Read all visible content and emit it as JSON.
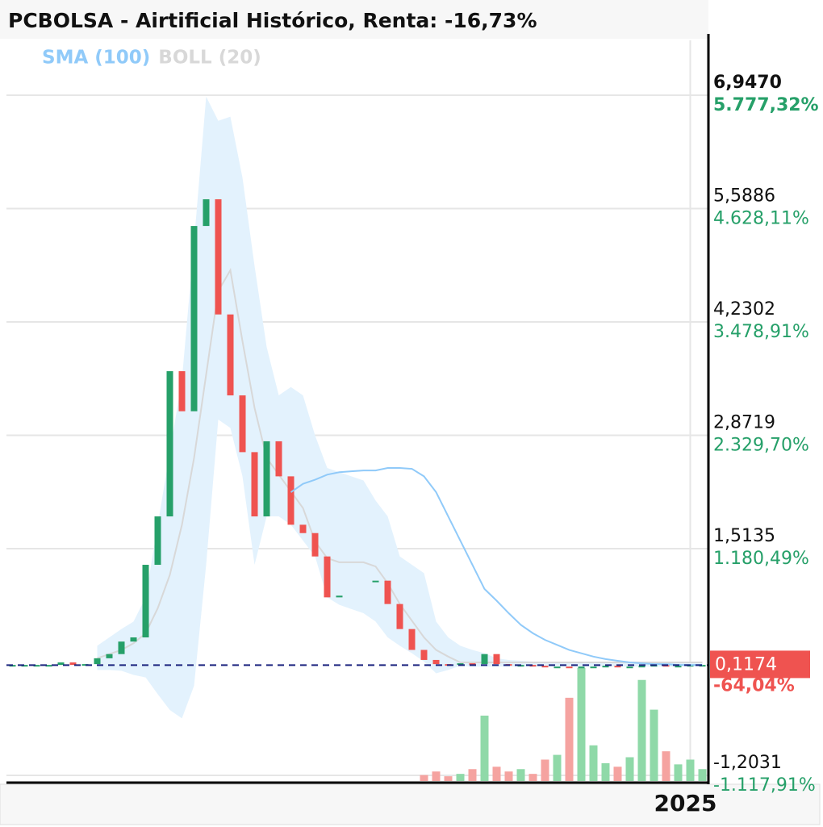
{
  "chart_data": {
    "type": "candlestick",
    "title": "PCBOLSA - Airtificial Histórico, Renta: -16,73%",
    "categories": [
      null,
      null,
      null,
      null,
      null,
      null,
      null,
      null,
      null,
      null,
      null,
      null,
      null,
      null,
      null,
      null,
      null,
      null,
      null,
      null,
      null,
      null,
      null,
      null,
      null,
      null,
      null,
      null,
      null,
      null,
      null,
      null,
      null,
      null,
      null,
      null,
      null,
      null,
      null,
      null,
      null,
      null,
      null,
      null,
      null,
      null,
      null,
      null,
      null,
      null,
      null,
      null,
      null,
      null,
      null,
      null,
      "2025",
      null
    ],
    "close": [
      0.12,
      0.12,
      0.12,
      0.12,
      0.15,
      0.12,
      0.13,
      0.2,
      0.25,
      0.4,
      0.45,
      1.32,
      1.9,
      3.64,
      3.16,
      5.38,
      5.7,
      4.32,
      3.35,
      2.67,
      1.9,
      2.8,
      2.38,
      1.8,
      1.7,
      1.42,
      0.93,
      0.95,
      null,
      null,
      1.13,
      0.85,
      0.55,
      0.3,
      0.18,
      0.13,
      0.12,
      0.14,
      0.13,
      0.25,
      0.13,
      0.12,
      0.12,
      0.11,
      0.1,
      0.1,
      0.09,
      0.1,
      0.1,
      0.11,
      0.1,
      0.1,
      0.11,
      0.12,
      0.1,
      0.11,
      0.12,
      0.12
    ],
    "up_color": "#26a069",
    "down_color": "#ef5350",
    "volume": [
      0,
      0,
      0,
      0,
      0,
      0,
      0,
      0,
      0,
      0,
      0,
      0,
      0,
      0,
      0,
      0,
      0,
      0,
      0,
      0,
      0,
      0,
      0,
      0,
      0,
      0,
      0,
      0,
      0,
      0,
      0,
      0,
      0,
      0,
      5,
      8,
      4,
      6,
      10,
      55,
      12,
      8,
      10,
      6,
      18,
      22,
      70,
      95,
      30,
      15,
      12,
      20,
      85,
      60,
      25,
      14,
      18,
      10
    ],
    "series": [
      {
        "name": "SMA (100)",
        "color": "#90caf9",
        "values": [
          null,
          null,
          null,
          null,
          null,
          null,
          null,
          null,
          null,
          null,
          null,
          null,
          null,
          null,
          null,
          null,
          null,
          null,
          null,
          null,
          null,
          null,
          null,
          2.19,
          2.29,
          2.34,
          2.4,
          2.43,
          2.44,
          2.45,
          2.45,
          2.48,
          2.48,
          2.47,
          2.38,
          2.19,
          1.9,
          1.61,
          1.32,
          1.03,
          0.89,
          0.74,
          0.6,
          0.5,
          0.42,
          0.36,
          0.3,
          0.26,
          0.22,
          0.19,
          0.17,
          0.15,
          0.14,
          0.13,
          0.13,
          0.12,
          0.12,
          0.12
        ]
      },
      {
        "name": "BOLL (20)",
        "color": "#d8d8d8",
        "band_color": "#e3f2fd",
        "values": [
          null,
          null,
          null,
          null,
          null,
          null,
          null,
          0.2,
          0.25,
          0.3,
          0.38,
          0.5,
          0.8,
          1.2,
          1.8,
          2.6,
          3.6,
          4.6,
          4.85,
          4.0,
          3.2,
          2.6,
          2.4,
          2.2,
          2.0,
          1.6,
          1.4,
          1.35,
          1.35,
          1.35,
          1.3,
          1.1,
          0.85,
          0.65,
          0.45,
          0.3,
          0.22,
          0.15,
          0.15,
          0.15,
          0.15,
          0.15,
          0.15,
          0.15,
          0.15,
          0.15,
          0.15,
          0.15,
          0.15,
          0.15,
          0.15,
          0.15,
          0.15,
          0.15,
          0.15,
          0.15,
          0.15,
          0.15
        ],
        "upper": [
          null,
          null,
          null,
          null,
          null,
          null,
          null,
          0.35,
          0.45,
          0.55,
          0.64,
          0.93,
          1.8,
          2.67,
          3.54,
          5.19,
          6.93,
          6.64,
          6.69,
          5.96,
          4.9,
          3.93,
          3.35,
          3.45,
          3.35,
          2.87,
          2.48,
          2.43,
          2.38,
          2.33,
          2.09,
          1.9,
          1.42,
          1.32,
          1.22,
          0.64,
          0.45,
          0.35,
          0.3,
          0.26,
          0.2,
          0.18,
          0.17,
          0.16,
          0.16,
          0.16,
          0.16,
          0.16,
          0.16,
          0.16,
          0.16,
          0.16,
          0.16,
          0.16,
          0.16,
          0.16,
          0.16,
          0.16
        ],
        "lower": [
          null,
          null,
          null,
          null,
          null,
          null,
          null,
          0.06,
          0.06,
          0.05,
          0.0,
          -0.03,
          -0.23,
          -0.42,
          -0.52,
          -0.13,
          1.32,
          3.06,
          2.96,
          2.38,
          1.32,
          1.9,
          1.9,
          1.8,
          1.61,
          1.42,
          0.93,
          0.84,
          0.79,
          0.74,
          0.64,
          0.45,
          0.35,
          0.26,
          0.16,
          0.02,
          0.06,
          0.11,
          0.1,
          0.1,
          0.1,
          0.1,
          0.1,
          0.1,
          0.1,
          0.1,
          0.1,
          0.1,
          0.1,
          0.1,
          0.1,
          0.1,
          0.1,
          0.1,
          0.1,
          0.1,
          0.1,
          0.1
        ]
      }
    ],
    "ylim": [
      -1.2708,
      7.6045
    ],
    "yticks": [
      {
        "value": 6.947,
        "label": "6,9470"
      },
      {
        "value": 5.5886,
        "label": "5,5886"
      },
      {
        "value": 4.2302,
        "label": "4,2302"
      },
      {
        "value": 2.8719,
        "label": "2,8719"
      },
      {
        "value": 1.5135,
        "label": "1,5135"
      },
      {
        "value": -1.2031,
        "label": "-1,2031"
      }
    ],
    "y2lim": [
      -1175.2,
      6333.6
    ],
    "y2ticks": [
      {
        "value": 5777.32,
        "label": "5.777,32%"
      },
      {
        "value": 4628.11,
        "label": "4.628,11%"
      },
      {
        "value": 3478.91,
        "label": "3.478,91%"
      },
      {
        "value": 2329.7,
        "label": "2.329,70%"
      },
      {
        "value": 1180.49,
        "label": "1.180,49%"
      },
      {
        "value": -1117.91,
        "label": "-1.117,91%"
      }
    ],
    "last_price": {
      "value": 0.1174,
      "label": "0,1174"
    },
    "last_change_label": "-64,04%",
    "grid": true
  }
}
